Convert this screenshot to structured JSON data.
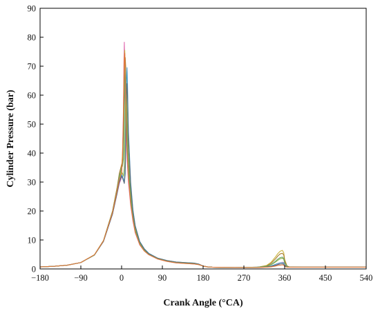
{
  "chart_data": {
    "type": "line",
    "title": "",
    "xlabel": "Crank Angle (°CA)",
    "ylabel": "Cylinder Pressure (bar)",
    "xlim": [
      -180,
      540
    ],
    "ylim": [
      0,
      90
    ],
    "xticks": [
      -180,
      -90,
      0,
      90,
      180,
      270,
      360,
      450,
      540
    ],
    "yticks": [
      0,
      10,
      20,
      30,
      40,
      50,
      60,
      70,
      80,
      90
    ],
    "grid": false,
    "legend": "none",
    "series": [
      {
        "color": "#e06bb0",
        "x": [
          -180,
          -150,
          -120,
          -90,
          -60,
          -40,
          -20,
          -10,
          -5,
          0,
          2,
          4,
          5,
          6,
          7,
          8,
          10,
          12,
          15,
          20,
          25,
          30,
          40,
          50,
          60,
          80,
          100,
          120,
          140,
          160,
          170,
          180,
          190,
          200,
          250,
          300,
          320,
          330,
          340,
          345,
          350,
          355,
          358,
          360,
          365,
          370,
          400,
          450,
          500,
          540
        ],
        "y": [
          0.7,
          0.9,
          1.3,
          2.2,
          4.8,
          9.5,
          19,
          26,
          29.5,
          31.5,
          40,
          55,
          70,
          78.3,
          72,
          62,
          48,
          38,
          30,
          22,
          16.5,
          12.5,
          8.3,
          6.2,
          4.9,
          3.4,
          2.6,
          2.1,
          1.9,
          1.7,
          1.5,
          1.0,
          0.7,
          0.6,
          0.5,
          0.5,
          0.6,
          0.8,
          1.2,
          1.6,
          2.1,
          2.3,
          2.2,
          1.4,
          0.8,
          0.6,
          0.6,
          0.6,
          0.6,
          0.6
        ]
      },
      {
        "color": "#c9b23a",
        "x": [
          -180,
          -150,
          -120,
          -90,
          -60,
          -40,
          -20,
          -10,
          -5,
          0,
          2,
          4,
          5,
          6,
          7,
          8,
          10,
          12,
          15,
          20,
          25,
          30,
          40,
          50,
          60,
          80,
          100,
          120,
          140,
          160,
          170,
          180,
          190,
          200,
          250,
          300,
          320,
          330,
          340,
          345,
          350,
          355,
          358,
          360,
          365,
          370,
          400,
          450,
          500,
          540
        ],
        "y": [
          0.7,
          0.9,
          1.3,
          2.2,
          4.9,
          9.8,
          20,
          28,
          32,
          34.5,
          40,
          50,
          62,
          73,
          75.5,
          70,
          55,
          43,
          33,
          23.5,
          17.5,
          13,
          8.6,
          6.4,
          5.0,
          3.5,
          2.7,
          2.2,
          2.0,
          1.8,
          1.5,
          1.0,
          0.7,
          0.6,
          0.5,
          0.6,
          1.2,
          2.3,
          4.2,
          5.3,
          6.1,
          6.4,
          5.6,
          3.3,
          1.1,
          0.7,
          0.6,
          0.6,
          0.6,
          0.6
        ]
      },
      {
        "color": "#a87a2c",
        "x": [
          -180,
          -150,
          -120,
          -90,
          -60,
          -40,
          -20,
          -10,
          -5,
          0,
          2,
          4,
          6,
          7,
          8,
          9,
          10,
          12,
          15,
          20,
          25,
          30,
          40,
          50,
          60,
          80,
          100,
          120,
          140,
          160,
          170,
          180,
          190,
          200,
          250,
          300,
          320,
          330,
          340,
          345,
          350,
          355,
          358,
          360,
          365,
          370,
          400,
          450,
          500,
          540
        ],
        "y": [
          0.7,
          0.9,
          1.3,
          2.2,
          4.9,
          9.8,
          20,
          28,
          33,
          36,
          37,
          42,
          58,
          66,
          73,
          70,
          62,
          48,
          36,
          25,
          18,
          13.5,
          8.8,
          6.5,
          5.1,
          3.6,
          2.8,
          2.3,
          2.1,
          1.9,
          1.6,
          1.0,
          0.7,
          0.6,
          0.5,
          0.6,
          1.0,
          1.9,
          3.5,
          4.5,
          5.2,
          5.4,
          4.8,
          2.9,
          1.0,
          0.7,
          0.6,
          0.6,
          0.6,
          0.6
        ]
      },
      {
        "color": "#8fb04a",
        "x": [
          -180,
          -150,
          -120,
          -90,
          -60,
          -40,
          -20,
          -10,
          -5,
          0,
          2,
          4,
          6,
          8,
          9,
          10,
          11,
          12,
          15,
          20,
          25,
          30,
          40,
          50,
          60,
          80,
          100,
          120,
          140,
          160,
          170,
          180,
          190,
          200,
          250,
          300,
          320,
          330,
          340,
          345,
          350,
          355,
          358,
          360,
          365,
          370,
          400,
          450,
          500,
          540
        ],
        "y": [
          0.7,
          0.9,
          1.3,
          2.2,
          4.8,
          9.6,
          19.5,
          27,
          31.5,
          33.5,
          33,
          32,
          35,
          50,
          60,
          66,
          62,
          54,
          40,
          27,
          19,
          14,
          9.1,
          6.7,
          5.2,
          3.6,
          2.8,
          2.3,
          2.1,
          1.9,
          1.6,
          1.0,
          0.7,
          0.6,
          0.5,
          0.6,
          0.8,
          1.4,
          2.4,
          3.0,
          3.5,
          3.7,
          3.3,
          2.0,
          0.8,
          0.6,
          0.6,
          0.6,
          0.6,
          0.6
        ]
      },
      {
        "color": "#4a9ac9",
        "x": [
          -180,
          -150,
          -120,
          -90,
          -60,
          -40,
          -20,
          -10,
          -5,
          0,
          2,
          4,
          6,
          8,
          10,
          11,
          12,
          13,
          15,
          20,
          25,
          30,
          40,
          50,
          60,
          80,
          100,
          120,
          140,
          160,
          170,
          180,
          190,
          200,
          250,
          300,
          320,
          330,
          340,
          345,
          350,
          355,
          358,
          360,
          365,
          370,
          400,
          450,
          500,
          540
        ],
        "y": [
          0.7,
          0.9,
          1.3,
          2.2,
          4.8,
          9.5,
          19,
          26.5,
          30.5,
          32.5,
          32,
          31,
          30,
          36,
          55,
          66,
          69.5,
          64,
          48,
          30,
          20.5,
          15,
          9.5,
          7.0,
          5.4,
          3.7,
          2.9,
          2.4,
          2.2,
          2.0,
          1.7,
          1.0,
          0.7,
          0.6,
          0.5,
          0.6,
          0.7,
          1.0,
          1.6,
          1.9,
          2.1,
          2.2,
          2.0,
          1.3,
          0.7,
          0.6,
          0.6,
          0.6,
          0.6,
          0.6
        ]
      },
      {
        "color": "#5a6a7a",
        "x": [
          -180,
          -150,
          -120,
          -90,
          -60,
          -40,
          -20,
          -10,
          -5,
          0,
          2,
          4,
          6,
          8,
          10,
          11,
          12,
          13,
          15,
          20,
          25,
          30,
          40,
          50,
          60,
          80,
          100,
          120,
          140,
          160,
          170,
          180,
          190,
          200,
          250,
          300,
          320,
          330,
          340,
          345,
          350,
          355,
          358,
          360,
          365,
          370,
          400,
          450,
          500,
          540
        ],
        "y": [
          0.7,
          0.9,
          1.3,
          2.2,
          4.8,
          9.5,
          19,
          26,
          30,
          32,
          31.5,
          30.5,
          29.5,
          33,
          50,
          60,
          64,
          60,
          46,
          29,
          20,
          14.8,
          9.4,
          6.9,
          5.3,
          3.7,
          2.9,
          2.4,
          2.2,
          2.0,
          1.7,
          1.0,
          0.7,
          0.6,
          0.5,
          0.6,
          0.7,
          0.9,
          1.3,
          1.5,
          1.7,
          1.8,
          1.6,
          1.1,
          0.7,
          0.6,
          0.6,
          0.6,
          0.6,
          0.6
        ]
      },
      {
        "color": "#6aa86a",
        "x": [
          -180,
          -150,
          -120,
          -90,
          -60,
          -40,
          -20,
          -10,
          -5,
          0,
          2,
          4,
          6,
          7,
          8,
          9,
          10,
          12,
          15,
          20,
          25,
          30,
          40,
          50,
          60,
          80,
          100,
          120,
          140,
          160,
          170,
          180,
          190,
          200,
          250,
          300,
          320,
          330,
          340,
          345,
          350,
          355,
          358,
          360,
          365,
          370,
          400,
          450,
          500,
          540
        ],
        "y": [
          0.7,
          0.9,
          1.3,
          2.2,
          4.8,
          9.7,
          19.8,
          27.5,
          32,
          35,
          35.5,
          38,
          52,
          62,
          70,
          68,
          60,
          47,
          35,
          24.5,
          18,
          13.3,
          8.7,
          6.4,
          5.0,
          3.5,
          2.7,
          2.2,
          2.0,
          1.8,
          1.5,
          1.0,
          0.7,
          0.6,
          0.5,
          0.6,
          0.9,
          1.5,
          2.7,
          3.4,
          3.9,
          4.1,
          3.6,
          2.2,
          0.9,
          0.6,
          0.6,
          0.6,
          0.6,
          0.6
        ]
      },
      {
        "color": "#e2783a",
        "x": [
          -180,
          -150,
          -120,
          -90,
          -60,
          -40,
          -20,
          -10,
          -5,
          0,
          2,
          4,
          5,
          6,
          7,
          8,
          10,
          12,
          15,
          20,
          25,
          30,
          40,
          50,
          60,
          80,
          100,
          120,
          140,
          160,
          170,
          180,
          190,
          200,
          250,
          300,
          320,
          330,
          340,
          345,
          350,
          355,
          358,
          360,
          365,
          370,
          400,
          450,
          500,
          540
        ],
        "y": [
          0.7,
          0.9,
          1.3,
          2.2,
          4.9,
          9.7,
          19.5,
          27,
          31,
          33,
          38,
          52,
          64,
          73,
          74.5,
          68,
          53,
          41,
          31.5,
          22.5,
          17,
          12.7,
          8.4,
          6.2,
          4.9,
          3.4,
          2.6,
          2.1,
          1.9,
          1.7,
          1.5,
          1.0,
          0.7,
          0.6,
          0.5,
          0.5,
          0.6,
          0.7,
          1.0,
          1.2,
          1.3,
          1.4,
          1.3,
          0.9,
          0.6,
          0.6,
          0.6,
          0.6,
          0.6,
          0.6
        ]
      }
    ]
  }
}
